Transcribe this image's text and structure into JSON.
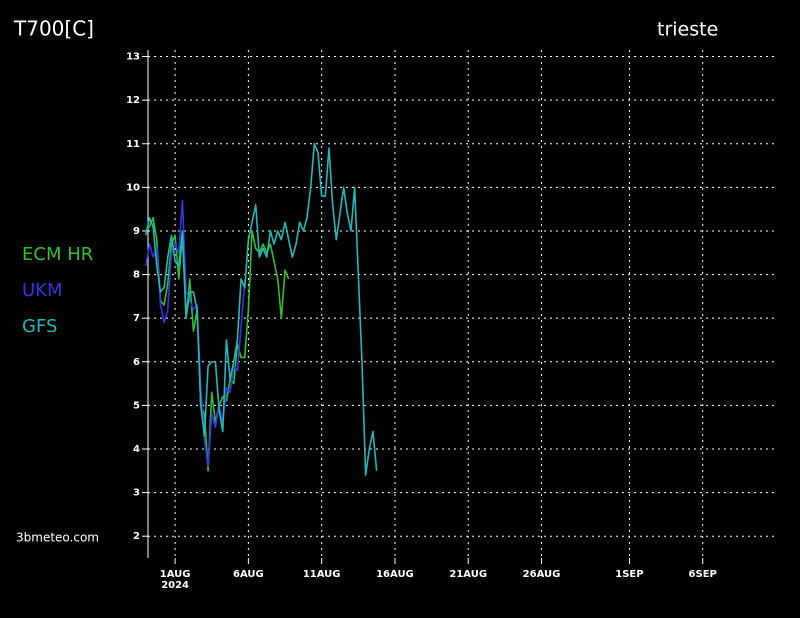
{
  "chart_data": {
    "type": "line",
    "title": "T700[C]",
    "subtitle": "trieste",
    "source": "3bmeteo.com",
    "year_label": "2024",
    "x": [
      -1,
      -0.75,
      -0.5,
      -0.25,
      0,
      0.25,
      0.5,
      0.75,
      1,
      1.25,
      1.5,
      1.75,
      2,
      2.25,
      2.5,
      2.75,
      3,
      3.25,
      3.5,
      3.75,
      4,
      4.25,
      4.5,
      4.75,
      5,
      5.25,
      5.5,
      5.75,
      6,
      6.25,
      6.5,
      6.75,
      7,
      7.25,
      7.5,
      7.75,
      8,
      8.25,
      8.5,
      8.75,
      9,
      9.25,
      9.5,
      9.75,
      10,
      10.25,
      10.5,
      10.75,
      11,
      11.25,
      11.5,
      11.75,
      12,
      12.25,
      12.5,
      12.75,
      13,
      13.25,
      13.5,
      13.75,
      14,
      14.25,
      14.5,
      14.75
    ],
    "series": [
      {
        "name": "ECM HR",
        "color": "#2fc02f",
        "values": [
          9.0,
          9.1,
          9.3,
          8.8,
          7.4,
          7.3,
          7.8,
          8.7,
          8.9,
          7.9,
          8.9,
          7.0,
          7.9,
          6.7,
          7.2,
          5.0,
          4.8,
          3.5,
          5.3,
          4.6,
          5.0,
          5.2,
          5.1,
          5.6,
          5.5,
          6.4,
          6.1,
          6.1,
          7.2,
          9.0,
          8.6,
          8.5,
          8.7,
          8.5,
          8.7,
          8.3,
          7.9,
          7.0,
          8.1,
          7.9,
          null,
          null,
          null,
          null,
          null,
          null,
          null,
          null,
          null,
          null,
          null,
          null,
          null,
          null,
          null,
          null,
          null,
          null,
          null,
          null,
          null,
          null,
          null,
          null
        ]
      },
      {
        "name": "UKM",
        "color": "#3434e0",
        "values": [
          8.2,
          8.7,
          8.4,
          8.6,
          7.3,
          6.9,
          7.2,
          8.5,
          8.7,
          8.5,
          9.7,
          7.6,
          7.4,
          7.2,
          7.3,
          5.4,
          4.2,
          3.6,
          4.8,
          4.5,
          5.0,
          4.6,
          5.4,
          5.3,
          5.9,
          5.8,
          6.8,
          7.8,
          null,
          null,
          null,
          null,
          null,
          null,
          null,
          null,
          null,
          null,
          null,
          null,
          null,
          null,
          null,
          null,
          null,
          null,
          null,
          null,
          null,
          null,
          null,
          null,
          null,
          null,
          null,
          null,
          null,
          null,
          null,
          null,
          null,
          null,
          null,
          null
        ]
      },
      {
        "name": "GFS",
        "color": "#22b8b8",
        "values": [
          8.9,
          9.3,
          9.1,
          8.2,
          7.6,
          7.7,
          8.4,
          8.9,
          8.3,
          8.2,
          9.0,
          7.0,
          7.6,
          7.6,
          7.2,
          5.0,
          4.3,
          5.9,
          6.0,
          6.0,
          4.9,
          4.4,
          6.5,
          5.6,
          6.0,
          6.5,
          7.9,
          7.7,
          8.8,
          9.2,
          9.6,
          8.4,
          8.6,
          8.4,
          9.0,
          8.7,
          9.0,
          8.8,
          9.2,
          8.8,
          8.4,
          8.7,
          9.2,
          9.0,
          9.3,
          10.0,
          11.0,
          10.8,
          9.8,
          9.8,
          10.9,
          9.6,
          8.8,
          9.4,
          10.0,
          9.4,
          9.0,
          10.0,
          8.0,
          6.0,
          3.4,
          4.0,
          4.4,
          3.5
        ]
      }
    ],
    "xlim": [
      -0.85,
      42
    ],
    "xticks": [
      {
        "value": 1,
        "label": "1AUG"
      },
      {
        "value": 6,
        "label": "6AUG"
      },
      {
        "value": 11,
        "label": "11AUG"
      },
      {
        "value": 16,
        "label": "16AUG"
      },
      {
        "value": 21,
        "label": "21AUG"
      },
      {
        "value": 26,
        "label": "26AUG"
      },
      {
        "value": 32,
        "label": "1SEP"
      },
      {
        "value": 37,
        "label": "6SEP"
      }
    ],
    "ylim": [
      1.5,
      13.15
    ],
    "yticks": [
      2,
      3,
      4,
      5,
      6,
      7,
      8,
      9,
      10,
      11,
      12,
      13
    ],
    "grid": true
  }
}
